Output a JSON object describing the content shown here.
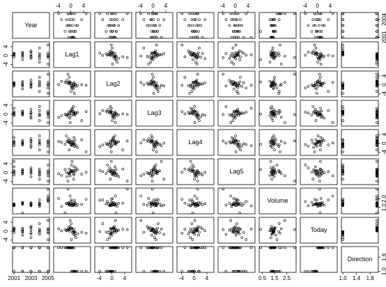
{
  "chart_data": {
    "type": "scatter-matrix",
    "variables": [
      {
        "name": "Year",
        "lim": [
          2001,
          2005
        ],
        "xticks": [
          2001,
          2003,
          2005
        ],
        "yticks": [
          2001,
          2004
        ],
        "values": [
          2001,
          2001,
          2001,
          2001,
          2001,
          2001,
          2002,
          2002,
          2002,
          2002,
          2002,
          2002,
          2003,
          2003,
          2003,
          2003,
          2003,
          2003,
          2004,
          2004,
          2004,
          2004,
          2004,
          2004,
          2005,
          2005,
          2005,
          2005,
          2005,
          2005
        ]
      },
      {
        "name": "Lag1",
        "lim": [
          -4.92,
          5.73
        ],
        "xticks": [
          -4,
          0,
          4
        ],
        "yticks": [
          -4,
          0,
          4
        ],
        "values": [
          0.38,
          0.96,
          1.03,
          -0.62,
          0.61,
          0.21,
          1.39,
          -0.4,
          0.03,
          1.3,
          -1.8,
          0.8,
          -0.3,
          2.1,
          -1.2,
          0.5,
          -0.7,
          1.6,
          -2.9,
          0.1,
          3.4,
          -0.5,
          0.9,
          -1.4,
          0.2,
          -3.8,
          1.1,
          -0.2,
          4.8,
          -0.9
        ]
      },
      {
        "name": "Lag2",
        "lim": [
          -4.92,
          5.73
        ],
        "xticks": [
          -4,
          0,
          4
        ],
        "yticks": [
          -4,
          0,
          4
        ],
        "values": [
          -0.19,
          0.38,
          0.96,
          1.03,
          -0.62,
          0.61,
          0.21,
          1.39,
          -0.4,
          0.03,
          1.3,
          -1.8,
          0.8,
          -0.3,
          2.1,
          -1.2,
          0.5,
          -0.7,
          1.6,
          -2.9,
          0.1,
          3.4,
          -0.5,
          0.9,
          -1.4,
          0.2,
          -3.8,
          1.1,
          -0.2,
          4.8
        ]
      },
      {
        "name": "Lag3",
        "lim": [
          -4.92,
          5.73
        ],
        "xticks": [
          -4,
          0,
          4
        ],
        "yticks": [
          -4,
          0,
          4
        ],
        "values": [
          2.62,
          -0.19,
          0.38,
          0.96,
          1.03,
          -0.62,
          0.61,
          0.21,
          1.39,
          -0.4,
          0.03,
          1.3,
          -1.8,
          0.8,
          -0.3,
          2.1,
          -1.2,
          0.5,
          -0.7,
          1.6,
          -2.9,
          0.1,
          3.4,
          -0.5,
          0.9,
          -1.4,
          0.2,
          -3.8,
          1.1,
          -0.2
        ]
      },
      {
        "name": "Lag4",
        "lim": [
          -4.92,
          5.73
        ],
        "xticks": [
          -4,
          0,
          4
        ],
        "yticks": [
          -4,
          0,
          4
        ],
        "values": [
          -1.06,
          2.62,
          -0.19,
          0.38,
          0.96,
          1.03,
          -0.62,
          0.61,
          0.21,
          1.39,
          -0.4,
          0.03,
          1.3,
          -1.8,
          0.8,
          -0.3,
          2.1,
          -1.2,
          0.5,
          -0.7,
          1.6,
          -2.9,
          0.1,
          3.4,
          -0.5,
          0.9,
          -1.4,
          0.2,
          -3.8,
          1.1
        ]
      },
      {
        "name": "Lag5",
        "lim": [
          -4.92,
          5.73
        ],
        "xticks": [
          -4,
          0,
          4
        ],
        "yticks": [
          -4,
          0,
          4
        ],
        "values": [
          5.01,
          -1.06,
          2.62,
          -0.19,
          0.38,
          0.96,
          1.03,
          -0.62,
          0.61,
          0.21,
          1.39,
          -0.4,
          0.03,
          1.3,
          -1.8,
          0.8,
          -0.3,
          2.1,
          -1.2,
          0.5,
          -0.7,
          1.6,
          -2.9,
          0.1,
          3.4,
          -0.5,
          0.9,
          -1.4,
          0.2,
          -3.8
        ]
      },
      {
        "name": "Volume",
        "lim": [
          0.36,
          3.15
        ],
        "xticks": [
          0.5,
          1.5,
          2.5
        ],
        "yticks": [
          {
            "value": 1,
            "label": "1.0"
          },
          {
            "value": 2,
            "label": "2.0"
          }
        ],
        "values": [
          1.19,
          1.3,
          1.41,
          1.28,
          1.21,
          1.35,
          1.45,
          1.38,
          1.52,
          1.6,
          0.36,
          1.42,
          1.25,
          1.31,
          1.47,
          1.39,
          1.55,
          1.2,
          1.12,
          1.88,
          1.36,
          1.5,
          1.27,
          1.44,
          1.7,
          2.05,
          1.85,
          2.35,
          1.95,
          3.15
        ]
      },
      {
        "name": "Today",
        "lim": [
          -4.92,
          5.73
        ],
        "xticks": [
          -4,
          0,
          4
        ],
        "yticks": [
          -4,
          0,
          4
        ],
        "values": [
          0.96,
          1.03,
          -0.62,
          0.61,
          0.21,
          1.39,
          -0.4,
          0.03,
          1.3,
          -1.8,
          0.8,
          -0.3,
          2.1,
          -1.2,
          0.5,
          -0.7,
          1.6,
          -2.9,
          0.1,
          3.4,
          -0.5,
          0.9,
          -1.4,
          0.2,
          -3.8,
          1.1,
          -0.2,
          4.8,
          -0.9,
          0.7
        ]
      },
      {
        "name": "Direction",
        "lim": [
          1,
          2
        ],
        "xticks": [
          {
            "value": 1,
            "label": "1.0"
          },
          1.4,
          1.8
        ],
        "yticks": [
          {
            "value": 1,
            "label": "1.0"
          },
          1.6
        ],
        "values": [
          2,
          2,
          1,
          2,
          2,
          2,
          1,
          2,
          2,
          1,
          2,
          1,
          2,
          1,
          2,
          1,
          2,
          1,
          2,
          2,
          1,
          2,
          1,
          2,
          1,
          2,
          1,
          2,
          1,
          2
        ]
      }
    ]
  }
}
